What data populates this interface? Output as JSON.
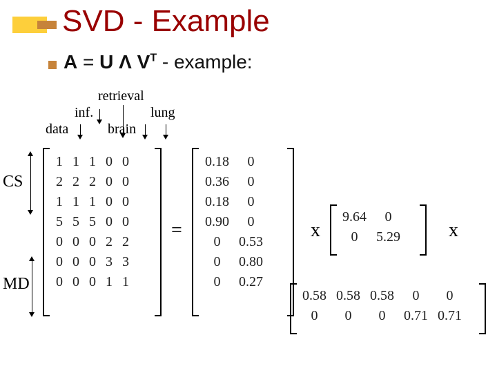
{
  "title": "SVD - Example",
  "formula_parts": {
    "A": "A",
    "eq": " = ",
    "U": "U",
    "L": " Λ ",
    "V": "V",
    "sup": "T",
    "tail": " - example:"
  },
  "columns": {
    "c1": "data",
    "c2": "inf.",
    "c3": "retrieval",
    "c4": "brain",
    "c5": "lung"
  },
  "rows": {
    "cs": "CS",
    "md": "MD"
  },
  "matrixA_type": "matrix",
  "matrixA_rows": [
    [
      "1",
      "1",
      "1",
      "0",
      "0"
    ],
    [
      "2",
      "2",
      "2",
      "0",
      "0"
    ],
    [
      "1",
      "1",
      "1",
      "0",
      "0"
    ],
    [
      "5",
      "5",
      "5",
      "0",
      "0"
    ],
    [
      "0",
      "0",
      "0",
      "2",
      "2"
    ],
    [
      "0",
      "0",
      "0",
      "3",
      "3"
    ],
    [
      "0",
      "0",
      "0",
      "1",
      "1"
    ]
  ],
  "matrixU_rows": [
    [
      "0.18",
      "0"
    ],
    [
      "0.36",
      "0"
    ],
    [
      "0.18",
      "0"
    ],
    [
      "0.90",
      "0"
    ],
    [
      "0",
      "0.53"
    ],
    [
      "0",
      "0.80"
    ],
    [
      "0",
      "0.27"
    ]
  ],
  "matrixS_rows": [
    [
      "9.64",
      "0"
    ],
    [
      "0",
      "5.29"
    ]
  ],
  "matrixV_rows": [
    [
      "0.58",
      "0.58",
      "0.58",
      "0",
      "0"
    ],
    [
      "0",
      "0",
      "0",
      "0.71",
      "0.71"
    ]
  ],
  "ops": {
    "eq": "=",
    "times": "x"
  },
  "style": {
    "title_color": "#990000",
    "accent_yellow": "#fdcf3b",
    "accent_orange": "#c6833a",
    "font_matrix_size": 20,
    "bracket_width": 2.5,
    "bracket_tab": 10
  }
}
